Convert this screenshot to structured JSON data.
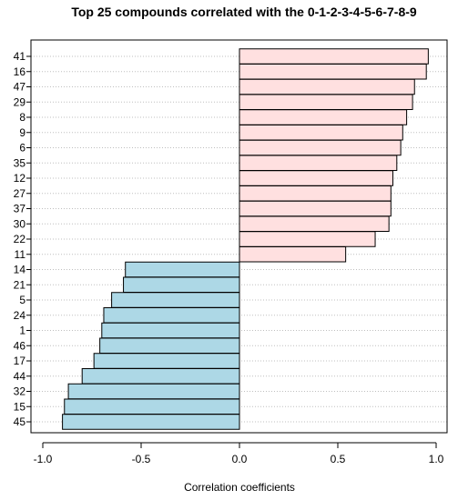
{
  "chart_data": {
    "type": "bar",
    "orientation": "horizontal",
    "title": "Top 25 compounds correlated with the 0-1-2-3-4-5-6-7-8-9",
    "xlabel": "Correlation coefficients",
    "ylabel": "",
    "xlim": [
      -1.0,
      1.0
    ],
    "xticks": [
      "-1.0",
      "-0.5",
      "0.0",
      "0.5",
      "1.0"
    ],
    "xtick_values": [
      -1.0,
      -0.5,
      0.0,
      0.5,
      1.0
    ],
    "grid": "horizontal dotted lines per category",
    "categories": [
      "41",
      "16",
      "47",
      "29",
      "8",
      "9",
      "6",
      "35",
      "12",
      "27",
      "37",
      "30",
      "22",
      "11",
      "14",
      "21",
      "5",
      "24",
      "1",
      "46",
      "17",
      "44",
      "32",
      "15",
      "45"
    ],
    "values": [
      0.96,
      0.95,
      0.89,
      0.88,
      0.85,
      0.83,
      0.82,
      0.8,
      0.78,
      0.77,
      0.77,
      0.76,
      0.69,
      0.54,
      -0.58,
      -0.59,
      -0.65,
      -0.69,
      -0.7,
      -0.71,
      -0.74,
      -0.8,
      -0.87,
      -0.89,
      -0.9
    ],
    "colors": {
      "positive": "#ffe0e0",
      "negative": "#add8e6",
      "bar_stroke": "#000000",
      "grid": "#bfbfbf",
      "frame": "#000000"
    }
  }
}
